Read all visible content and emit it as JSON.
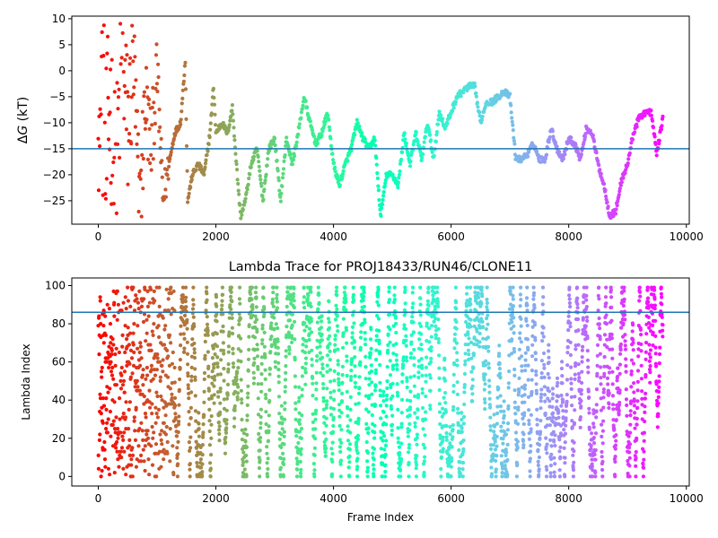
{
  "chart_data": [
    {
      "type": "scatter",
      "title": "",
      "xlabel": "",
      "ylabel": "ΔG (kT)",
      "ylabel_symbol": "Δ",
      "ylabel_var": "G",
      "ylabel_unit": " (kT)",
      "xlim": [
        -450,
        10050
      ],
      "ylim": [
        -29.5,
        10.5
      ],
      "xticks": [
        0,
        2000,
        4000,
        6000,
        8000,
        10000
      ],
      "yticks": [
        -25,
        -20,
        -15,
        -10,
        -5,
        0,
        5,
        10
      ],
      "hline": -15,
      "hline_color": "#1f77b4",
      "colormap": "rainbow",
      "color_by": "frame_index_reversed",
      "x_range": [
        0,
        9600
      ],
      "keypoints": [
        [
          0,
          9
        ],
        [
          30,
          -28
        ],
        [
          60,
          5
        ],
        [
          120,
          -22
        ],
        [
          200,
          -5
        ],
        [
          300,
          -25
        ],
        [
          400,
          8
        ],
        [
          500,
          -12
        ],
        [
          600,
          2
        ],
        [
          700,
          -28
        ],
        [
          800,
          -5
        ],
        [
          900,
          -15
        ],
        [
          1000,
          0
        ],
        [
          1100,
          -25
        ],
        [
          1200,
          -18
        ],
        [
          1300,
          -12
        ],
        [
          1400,
          -10
        ],
        [
          1480,
          2
        ],
        [
          1520,
          -25
        ],
        [
          1600,
          -20
        ],
        [
          1700,
          -18
        ],
        [
          1800,
          -20
        ],
        [
          1900,
          -12
        ],
        [
          1960,
          -3
        ],
        [
          2000,
          -12
        ],
        [
          2100,
          -10
        ],
        [
          2200,
          -12
        ],
        [
          2280,
          -7
        ],
        [
          2350,
          -18
        ],
        [
          2420,
          -28
        ],
        [
          2500,
          -25
        ],
        [
          2600,
          -18
        ],
        [
          2700,
          -15
        ],
        [
          2800,
          -25
        ],
        [
          2900,
          -15
        ],
        [
          3000,
          -13
        ],
        [
          3100,
          -25
        ],
        [
          3200,
          -13
        ],
        [
          3300,
          -18
        ],
        [
          3400,
          -12
        ],
        [
          3500,
          -5
        ],
        [
          3600,
          -10
        ],
        [
          3700,
          -14
        ],
        [
          3800,
          -12
        ],
        [
          3900,
          -8
        ],
        [
          4000,
          -18
        ],
        [
          4100,
          -22
        ],
        [
          4200,
          -18
        ],
        [
          4300,
          -15
        ],
        [
          4400,
          -10
        ],
        [
          4500,
          -13
        ],
        [
          4600,
          -15
        ],
        [
          4700,
          -13
        ],
        [
          4800,
          -28
        ],
        [
          4900,
          -20
        ],
        [
          5000,
          -20
        ],
        [
          5100,
          -22
        ],
        [
          5200,
          -12
        ],
        [
          5300,
          -18
        ],
        [
          5400,
          -12
        ],
        [
          5500,
          -17
        ],
        [
          5600,
          -10
        ],
        [
          5700,
          -17
        ],
        [
          5800,
          -8
        ],
        [
          5900,
          -11
        ],
        [
          6000,
          -8
        ],
        [
          6100,
          -5
        ],
        [
          6200,
          -4
        ],
        [
          6300,
          -3
        ],
        [
          6400,
          -3
        ],
        [
          6500,
          -10
        ],
        [
          6600,
          -6
        ],
        [
          6700,
          -6
        ],
        [
          6800,
          -5
        ],
        [
          6900,
          -4
        ],
        [
          7000,
          -5
        ],
        [
          7100,
          -17
        ],
        [
          7200,
          -17
        ],
        [
          7300,
          -16
        ],
        [
          7400,
          -14
        ],
        [
          7500,
          -17
        ],
        [
          7600,
          -17
        ],
        [
          7700,
          -11
        ],
        [
          7800,
          -15
        ],
        [
          7900,
          -17
        ],
        [
          8000,
          -13
        ],
        [
          8100,
          -14
        ],
        [
          8200,
          -17
        ],
        [
          8300,
          -11
        ],
        [
          8400,
          -12
        ],
        [
          8500,
          -18
        ],
        [
          8600,
          -22
        ],
        [
          8700,
          -28
        ],
        [
          8800,
          -27
        ],
        [
          8900,
          -21
        ],
        [
          9000,
          -18
        ],
        [
          9100,
          -12
        ],
        [
          9200,
          -9
        ],
        [
          9300,
          -8
        ],
        [
          9400,
          -8
        ],
        [
          9500,
          -16
        ],
        [
          9600,
          -9
        ]
      ]
    },
    {
      "type": "scatter",
      "title": "Lambda Trace for PROJ18433/RUN46/CLONE11",
      "xlabel": "Frame Index",
      "ylabel": "Lambda Index",
      "xlim": [
        -450,
        10050
      ],
      "ylim": [
        -5,
        104
      ],
      "xticks": [
        0,
        2000,
        4000,
        6000,
        8000,
        10000
      ],
      "yticks": [
        0,
        20,
        40,
        60,
        80,
        100
      ],
      "hline": 86,
      "hline_color": "#1f77b4",
      "colormap": "rainbow",
      "color_by": "frame_index_reversed",
      "x_range": [
        0,
        9600
      ],
      "value_range": [
        0,
        99
      ]
    }
  ]
}
